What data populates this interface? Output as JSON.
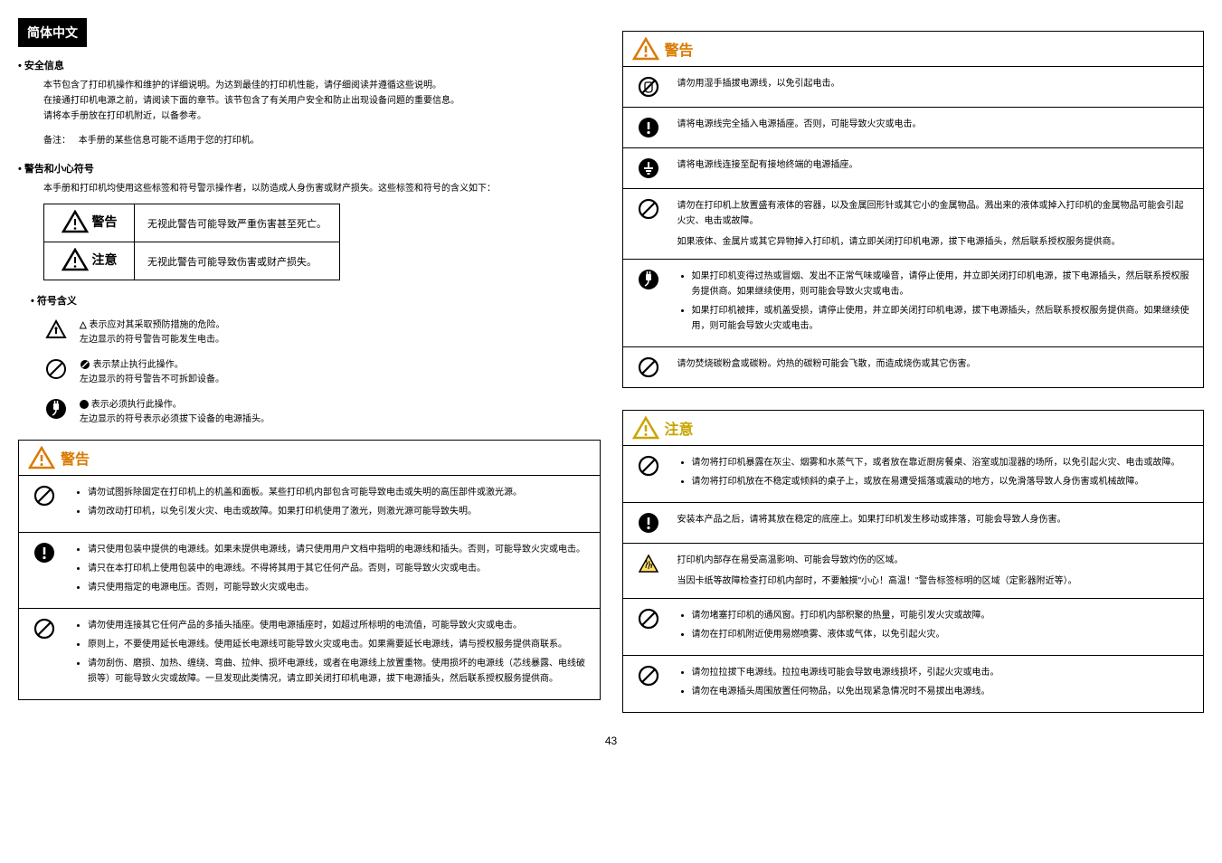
{
  "pageNumber": "43",
  "colors": {
    "orange": "#d97a00",
    "yellow": "#c9a400",
    "black": "#000000"
  },
  "leftColumn": {
    "sectionHeader": "简体中文",
    "safetyInfo": {
      "title": "• 安全信息",
      "body1": "本节包含了打印机操作和维护的详细说明。为达到最佳的打印机性能，请仔细阅读并遵循这些说明。",
      "body2": "在接通打印机电源之前，请阅读下面的章节。该节包含了有关用户安全和防止出现设备问题的重要信息。",
      "body3": "请将本手册放在打印机附近，以备参考。",
      "noteLabel": "备注：",
      "noteText": "本手册的某些信息可能不适用于您的打印机。"
    },
    "warningSymbols": {
      "title": "• 警告和小心符号",
      "intro": "本手册和打印机均使用这些标签和符号警示操作者，以防造成人身伤害或财产损失。这些标签和符号的含义如下：",
      "tableRow1Label": "警告",
      "tableRow1Text": "无视此警告可能导致严重伤害甚至死亡。",
      "tableRow2Label": "注意",
      "tableRow2Text": "无视此警告可能导致伤害或财产损失。"
    },
    "symbolMeanings": {
      "title": "• 符号含义",
      "row1a": "表示应对其采取预防措施的危险。",
      "row1b": "左边显示的符号警告可能发生电击。",
      "row2a": "表示禁止执行此操作。",
      "row2b": "左边显示的符号警告不可拆卸设备。",
      "row3a": "表示必须执行此操作。",
      "row3b": "左边显示的符号表示必须拔下设备的电源插头。"
    },
    "warningBox": {
      "title": "警告",
      "rows": [
        {
          "icon": "prohibit",
          "items": [
            "请勿试图拆除固定在打印机上的机盖和面板。某些打印机内部包含可能导致电击或失明的高压部件或激光源。",
            "请勿改动打印机，以免引发火灾、电击或故障。如果打印机使用了激光，则激光源可能导致失明。"
          ]
        },
        {
          "icon": "mandatory",
          "items": [
            "请只使用包装中提供的电源线。如果未提供电源线，请只使用用户文档中指明的电源线和插头。否则，可能导致火灾或电击。",
            "请只在本打印机上使用包装中的电源线。不得将其用于其它任何产品。否则，可能导致火灾或电击。",
            "请只使用指定的电源电压。否则，可能导致火灾或电击。"
          ]
        },
        {
          "icon": "prohibit",
          "items": [
            "请勿使用连接其它任何产品的多插头插座。使用电源插座时，如超过所标明的电流值，可能导致火灾或电击。",
            "原则上，不要使用延长电源线。使用延长电源线可能导致火灾或电击。如果需要延长电源线，请与授权服务提供商联系。",
            "请勿刮伤、磨损、加热、缠绕、弯曲、拉伸、损坏电源线，或者在电源线上放置重物。使用损坏的电源线（芯线暴露、电线破损等）可能导致火灾或故障。一旦发现此类情况，请立即关闭打印机电源，拔下电源插头，然后联系授权服务提供商。"
          ]
        }
      ]
    }
  },
  "rightColumn": {
    "warningBox": {
      "title": "警告",
      "rows": [
        {
          "icon": "nohand",
          "text": "请勿用湿手插拔电源线，以免引起电击。"
        },
        {
          "icon": "mandatory",
          "text": "请将电源线完全插入电源插座。否则，可能导致火灾或电击。"
        },
        {
          "icon": "ground",
          "text": "请将电源线连接至配有接地终端的电源插座。"
        },
        {
          "icon": "prohibit",
          "text": "请勿在打印机上放置盛有液体的容器，以及金属回形针或其它小的金属物品。溅出来的液体或掉入打印机的金属物品可能会引起火灾、电击或故障。\n如果液体、金属片或其它异物掉入打印机，请立即关闭打印机电源，拔下电源插头，然后联系授权服务提供商。"
        },
        {
          "icon": "plug",
          "items": [
            "如果打印机变得过热或冒烟、发出不正常气味或噪音，请停止使用，并立即关闭打印机电源，拔下电源插头，然后联系授权服务提供商。如果继续使用，则可能会导致火灾或电击。",
            "如果打印机被摔，或机盖受损，请停止使用，并立即关闭打印机电源，拔下电源插头，然后联系授权服务提供商。如果继续使用，则可能会导致火灾或电击。"
          ]
        },
        {
          "icon": "prohibit",
          "text": "请勿焚烧碳粉盒或碳粉。灼热的碳粉可能会飞散，而造成烧伤或其它伤害。"
        }
      ]
    },
    "cautionBox": {
      "title": "注意",
      "rows": [
        {
          "icon": "prohibit",
          "items": [
            "请勿将打印机暴露在灰尘、烟雾和水蒸气下，或者放在靠近厨房餐桌、浴室或加湿器的场所，以免引起火灾、电击或故障。",
            "请勿将打印机放在不稳定或倾斜的桌子上，或放在易遭受摇落或震动的地方，以免滑落导致人身伤害或机械故障。"
          ]
        },
        {
          "icon": "mandatory",
          "text": "安装本产品之后，请将其放在稳定的底座上。如果打印机发生移动或摔落，可能会导致人身伤害。"
        },
        {
          "icon": "hot",
          "text": "打印机内部存在易受高温影响、可能会导致灼伤的区域。\n当因卡纸等故障检查打印机内部时，不要触摸\"小心！高温！\"警告标签标明的区域（定影器附近等）。"
        },
        {
          "icon": "prohibit",
          "items": [
            "请勿堵塞打印机的通风窗。打印机内部积聚的热量，可能引发火灾或故障。",
            "请勿在打印机附近使用易燃喷雾、液体或气体，以免引起火灾。"
          ]
        },
        {
          "icon": "prohibit",
          "items": [
            "请勿拉拉拔下电源线。拉拉电源线可能会导致电源线损坏，引起火灾或电击。",
            "请勿在电源插头周围放置任何物品，以免出现紧急情况时不易拔出电源线。"
          ]
        }
      ]
    }
  }
}
